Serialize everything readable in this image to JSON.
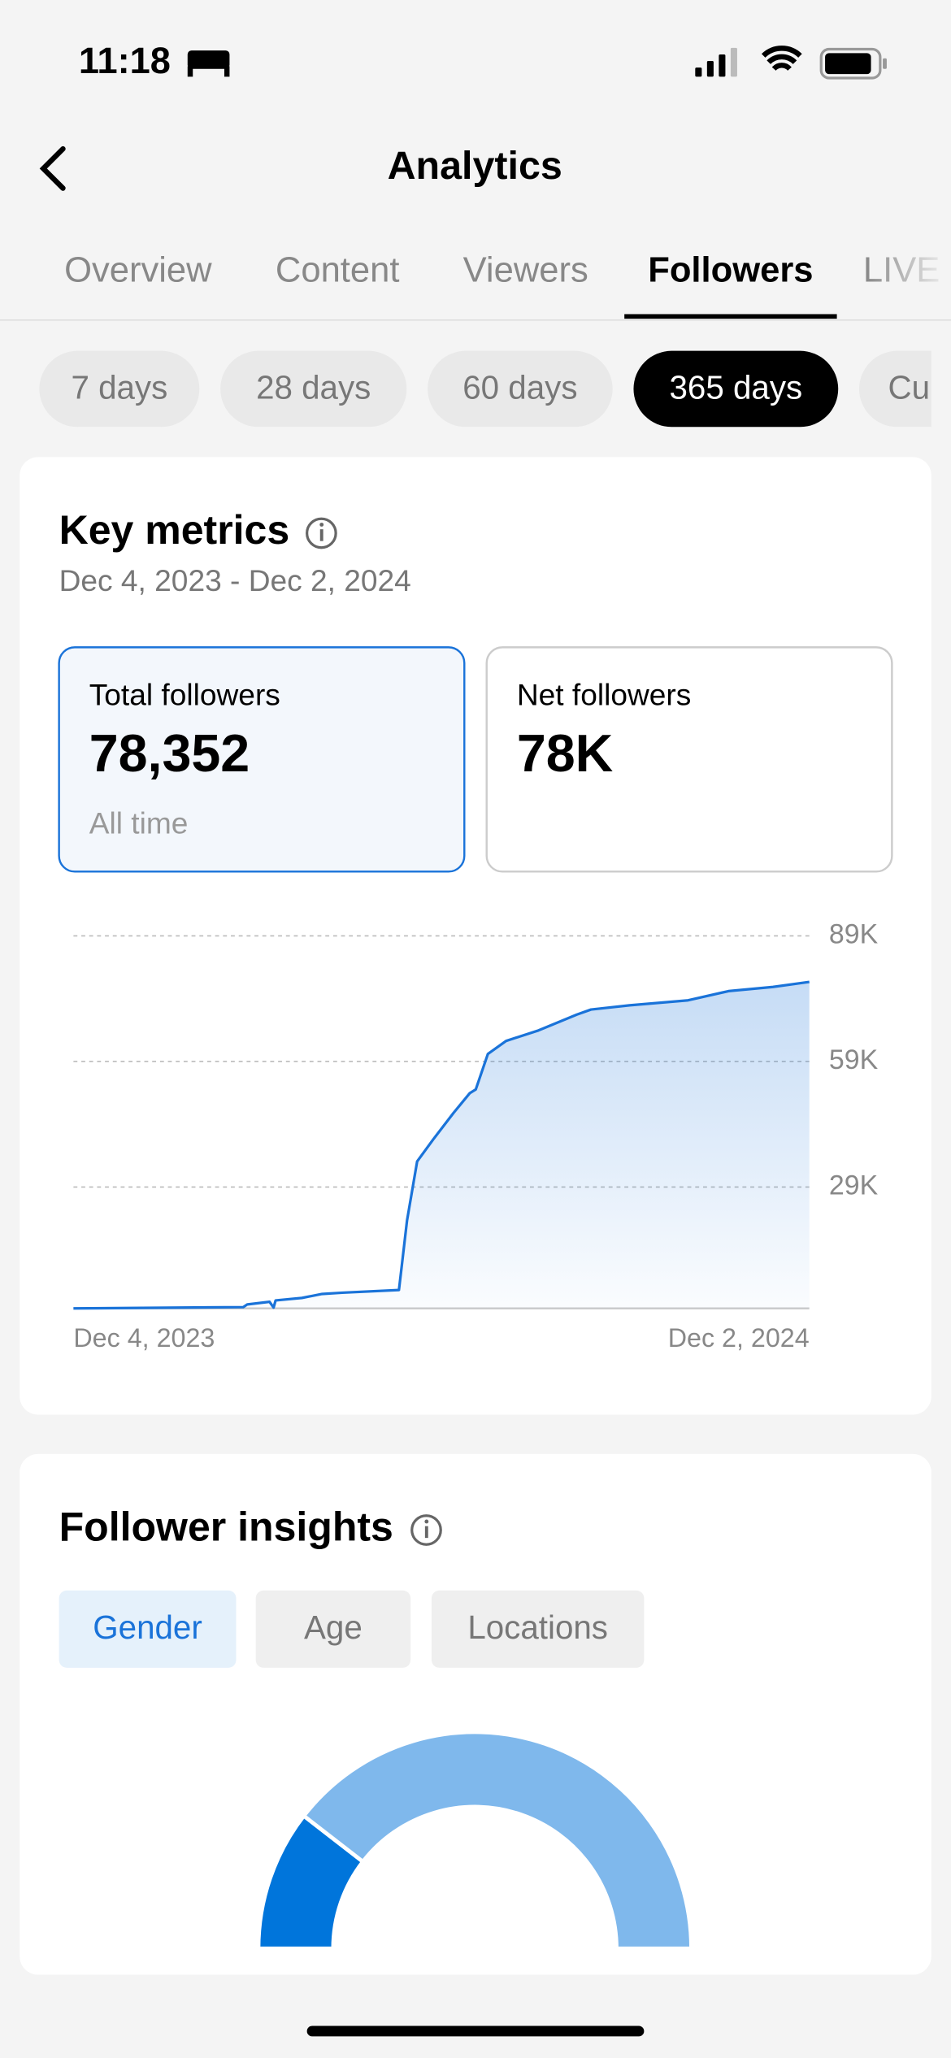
{
  "status_bar": {
    "time": "11:18"
  },
  "header": {
    "title": "Analytics"
  },
  "tabs": [
    "Overview",
    "Content",
    "Viewers",
    "Followers",
    "LIVE"
  ],
  "selected_tab": 3,
  "ranges": [
    "7 days",
    "28 days",
    "60 days",
    "365 days",
    "Cu"
  ],
  "selected_range": 3,
  "key_metrics": {
    "title": "Key metrics",
    "date_range": "Dec 4, 2023 - Dec 2, 2024",
    "cards": [
      {
        "label": "Total followers",
        "value": "78,352",
        "note": "All time"
      },
      {
        "label": "Net followers",
        "value": "78K"
      }
    ]
  },
  "insights": {
    "title": "Follower insights",
    "tabs": [
      "Gender",
      "Age",
      "Locations"
    ],
    "selected_tab": 0
  },
  "chart_data": [
    {
      "type": "line",
      "color": "#1a73d9",
      "grid": true,
      "x": [
        0,
        84,
        86,
        97,
        99,
        100,
        113,
        123,
        133,
        161,
        162,
        165,
        170,
        178,
        188,
        196,
        199,
        205,
        214,
        230,
        249,
        256,
        275,
        304,
        324,
        346,
        364
      ],
      "values": [
        0,
        300,
        950,
        1570,
        200,
        1900,
        2500,
        3450,
        3750,
        4400,
        8500,
        21000,
        35100,
        40400,
        46700,
        51400,
        52300,
        60800,
        63900,
        66400,
        70200,
        71400,
        72400,
        73600,
        75800,
        76800,
        78000
      ],
      "xlim": [
        0,
        364
      ],
      "xticks": [
        {
          "value": 0,
          "label": "Dec 4, 2023"
        },
        {
          "value": 364,
          "label": "Dec 2, 2024"
        }
      ],
      "ylim": [
        0,
        89000
      ],
      "yticks": [
        {
          "value": 29000,
          "label": "29K"
        },
        {
          "value": 59000,
          "label": "59K"
        },
        {
          "value": 89000,
          "label": "89K"
        }
      ]
    },
    {
      "type": "half-donut",
      "values": [
        21,
        79
      ],
      "colors": [
        "#0075db",
        "#7fb8ec"
      ]
    }
  ]
}
